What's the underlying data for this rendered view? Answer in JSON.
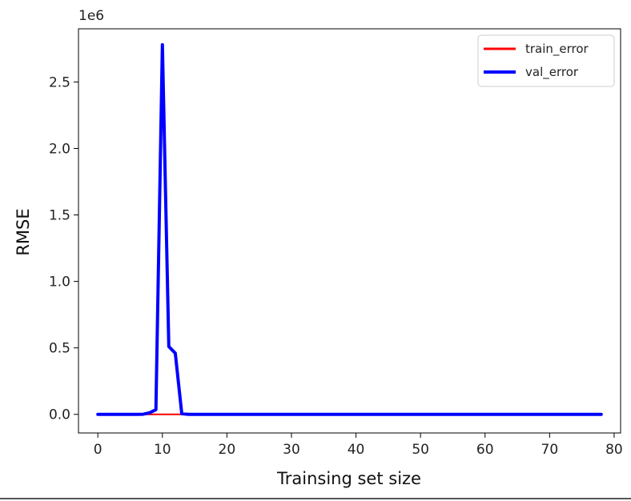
{
  "chart_data": {
    "type": "line",
    "title": "",
    "xlabel": "Trainsing set size",
    "ylabel": "RMSE",
    "y_offset_label": "1e6",
    "y_scale": 1000000,
    "xlim": [
      -3,
      81
    ],
    "ylim": [
      -140000,
      2900000
    ],
    "x_ticks": [
      0,
      10,
      20,
      30,
      40,
      50,
      60,
      70,
      80
    ],
    "x_tick_labels": [
      "0",
      "10",
      "20",
      "30",
      "40",
      "50",
      "60",
      "70",
      "80"
    ],
    "y_ticks": [
      0,
      500000,
      1000000,
      1500000,
      2000000,
      2500000
    ],
    "y_tick_labels": [
      "0.0",
      "0.5",
      "1.0",
      "1.5",
      "2.0",
      "2.5"
    ],
    "grid": false,
    "legend_position": "top-right",
    "series": [
      {
        "name": "train_error",
        "color": "#ff0000",
        "linewidth": 2,
        "x": [
          0,
          1,
          2,
          3,
          4,
          5,
          6,
          7,
          8,
          9,
          10,
          11,
          12,
          13,
          14,
          15,
          20,
          30,
          40,
          50,
          60,
          70,
          78
        ],
        "y": [
          0,
          0,
          0,
          0,
          0,
          0,
          0,
          0,
          0,
          0,
          0,
          0,
          0,
          0,
          0,
          0,
          0,
          0,
          0,
          0,
          0,
          0,
          0
        ]
      },
      {
        "name": "val_error",
        "color": "#0000ff",
        "linewidth": 4,
        "x": [
          0,
          1,
          2,
          3,
          4,
          5,
          6,
          7,
          8,
          9,
          10,
          11,
          12,
          13,
          14,
          15,
          20,
          30,
          40,
          50,
          60,
          70,
          78
        ],
        "y": [
          0,
          0,
          0,
          0,
          0,
          0,
          0,
          1000,
          12000,
          35000,
          2780000,
          510000,
          460000,
          5000,
          0,
          0,
          0,
          0,
          0,
          0,
          0,
          0,
          0
        ]
      }
    ]
  }
}
